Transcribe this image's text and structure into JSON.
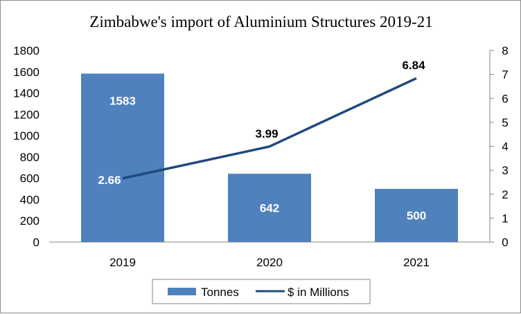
{
  "chart_data": {
    "type": "bar",
    "title": "Zimbabwe's import of Aluminium Structures 2019-21",
    "categories": [
      "2019",
      "2020",
      "2021"
    ],
    "series": [
      {
        "name": "Tonnes",
        "type": "bar",
        "axis": "left",
        "values": [
          1583,
          642,
          500
        ],
        "color": "#4f81bd",
        "labels": [
          "1583",
          "642",
          "500"
        ]
      },
      {
        "name": "$ in Millions",
        "type": "line",
        "axis": "right",
        "values": [
          2.66,
          3.99,
          6.84
        ],
        "color": "#1f497d",
        "labels": [
          "2.66",
          "3.99",
          "6.84"
        ]
      }
    ],
    "y_left": {
      "min": 0,
      "max": 1800,
      "ticks": [
        "0",
        "200",
        "400",
        "600",
        "800",
        "1000",
        "1200",
        "1400",
        "1600",
        "1800"
      ]
    },
    "y_right": {
      "min": 0,
      "max": 8,
      "ticks": [
        "0",
        "1",
        "2",
        "3",
        "4",
        "5",
        "6",
        "7",
        "8"
      ]
    },
    "grid": false,
    "legend_position": "bottom"
  }
}
